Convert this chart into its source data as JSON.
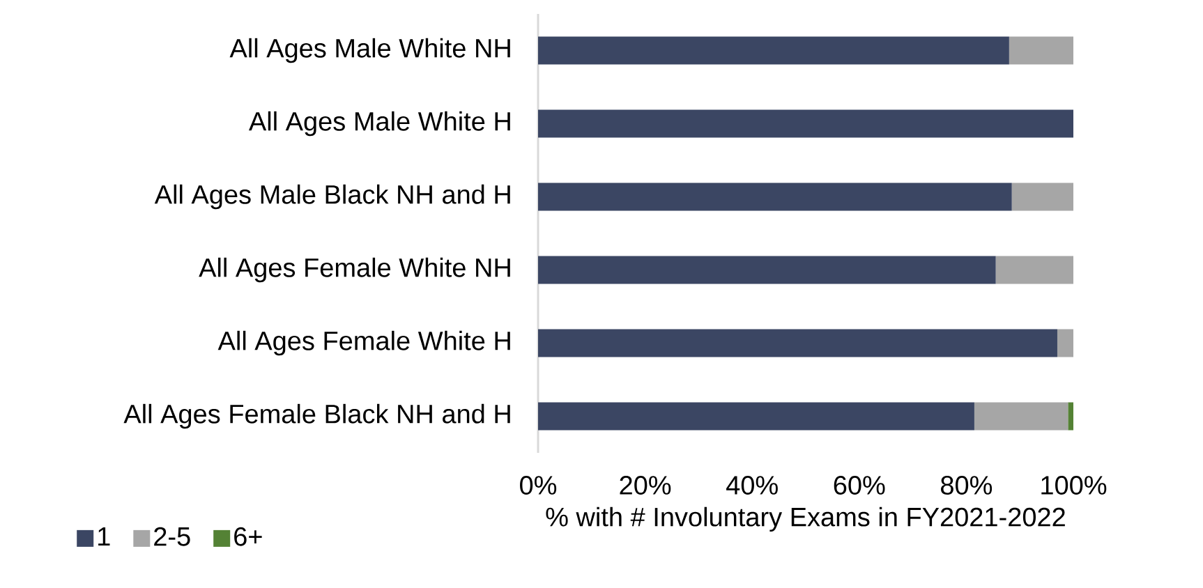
{
  "chart_data": {
    "type": "bar",
    "orientation": "horizontal",
    "stacked": true,
    "categories": [
      "All Ages Male White NH",
      "All Ages Male White H",
      "All Ages Male Black NH and H",
      "All Ages Female White NH",
      "All Ages Female White H",
      "All Ages Female Black NH and H"
    ],
    "series": [
      {
        "name": "1",
        "color": "#3b4663",
        "values": [
          88,
          100,
          88.5,
          85.5,
          97,
          81.5
        ]
      },
      {
        "name": "2-5",
        "color": "#a6a6a6",
        "values": [
          12,
          0,
          11.5,
          14.5,
          3,
          17.5
        ]
      },
      {
        "name": "6+",
        "color": "#548235",
        "values": [
          0,
          0,
          0,
          0,
          0,
          1
        ]
      }
    ],
    "xlabel": "% with # Involuntary Exams in FY2021-2022",
    "xlim": [
      0,
      100
    ],
    "xticks": [
      {
        "value": 0,
        "label": "0%"
      },
      {
        "value": 20,
        "label": "20%"
      },
      {
        "value": 40,
        "label": "40%"
      },
      {
        "value": 60,
        "label": "60%"
      },
      {
        "value": 80,
        "label": "80%"
      },
      {
        "value": 100,
        "label": "100%"
      }
    ],
    "legend": "bottom left",
    "grid": false
  }
}
